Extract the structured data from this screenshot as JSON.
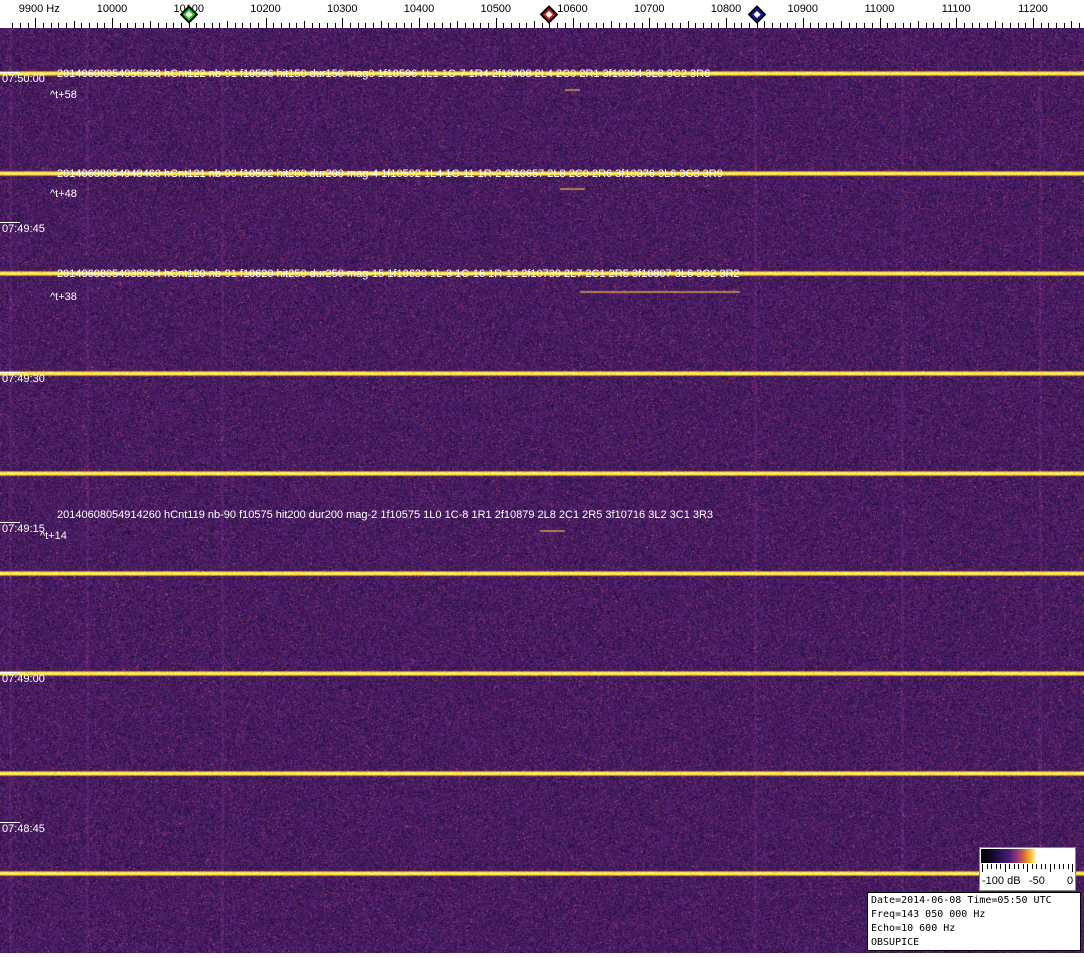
{
  "chart_data": {
    "type": "heatmap",
    "x_unit": "Hz",
    "x_range": [
      9870,
      11260
    ],
    "x_ticks": [
      9900,
      10000,
      10100,
      10200,
      10300,
      10400,
      10500,
      10600,
      10700,
      10800,
      10900,
      11000,
      11100,
      11200
    ],
    "x_first_label": "9900 Hz",
    "y_tick_labels": [
      "07:50:00",
      "07:49:45",
      "07:49:30",
      "07:49:15",
      "07:49:00",
      "07:48:45"
    ],
    "markers": [
      {
        "freq": 10100,
        "color": "#22cc22"
      },
      {
        "freq": 10570,
        "color": "#cc2222"
      },
      {
        "freq": 10840,
        "color": "#1a1aaa"
      }
    ],
    "detections": [
      {
        "text": "20140608054956368 hCnt122 nb-91 f10596 hit150 dur150 mag0 1f10596 1L1 1C-7 1R4 2f10408 2L4 2C0 2R1 3f10384 3L8 3C2 3R6",
        "offset": "^t+58"
      },
      {
        "text": "20140608054948460 hCnt121 nb-90 f10592 hit200 dur200 mag-4 1f10592 1L4 1C-11 1R-2 2f10657 2L8 2C0 2R6 3f10376 3L6 3C3 3R9",
        "offset": "^t+48"
      },
      {
        "text": "20140608054938064 hCnt120 nb-91 f10620 hit250 dur250 mag-15 1f10630 1L-3 1C-16 1R-12 2f10739 2L7 2C1 2R5 3f10807 3L6 3C2 3R2",
        "offset": "^t+38"
      },
      {
        "text": "20140608054914260 hCnt119 nb-90 f10575 hit200 dur200 mag-2 1f10575 1L0 1C-8 1R1 2f10879 2L8 2C1 2R5 3f10716 3L2 3C1 3R3",
        "offset": "^t+14"
      }
    ],
    "colorbar": {
      "labels": [
        "-100 dB",
        "-50",
        "0"
      ],
      "range_db": [
        -100,
        0
      ]
    },
    "colors": {
      "background": "#2a1660",
      "signal": "#ffd040"
    }
  },
  "info": {
    "line1": "Date=2014-06-08 Time=05:50 UTC",
    "line2": "Freq=143 050 000 Hz",
    "line3": "Echo=10 600 Hz",
    "line4": "OBSUPICE"
  }
}
